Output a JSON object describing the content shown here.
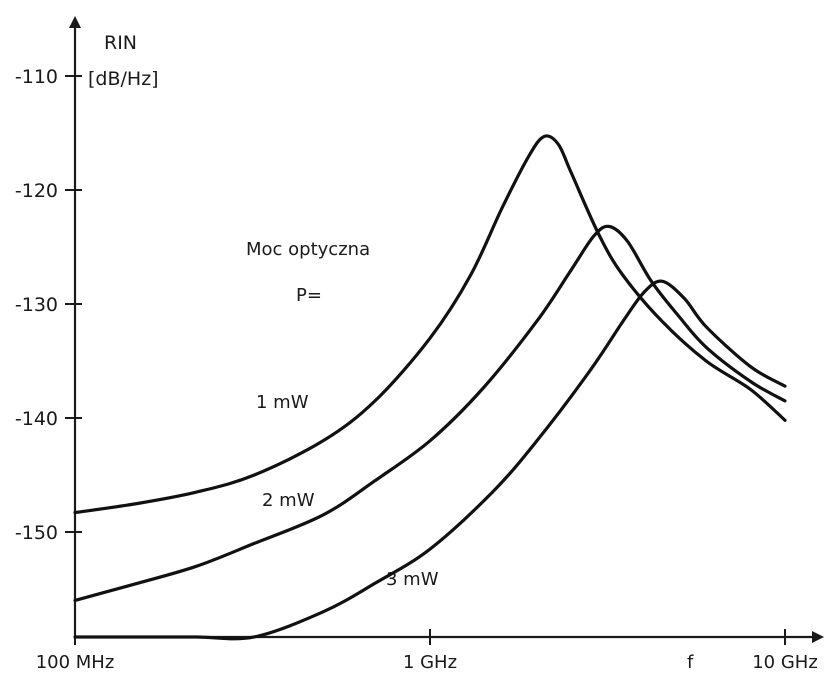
{
  "chart_data": {
    "type": "line",
    "title": "",
    "ylabel": "RIN",
    "yunit": "[dB/Hz]",
    "xlabel": "f",
    "x_scale": "log",
    "ylim": [
      -156,
      -106
    ],
    "xlim_hz": [
      100000000.0,
      10000000000.0
    ],
    "y_ticks": [
      -110,
      -120,
      -130,
      -140,
      -150
    ],
    "y_tick_labels": [
      "-110",
      "-120",
      "-130",
      "-140",
      "-150"
    ],
    "x_ticks_hz": [
      100000000.0,
      1000000000.0,
      10000000000.0
    ],
    "x_tick_labels": [
      "100 MHz",
      "1 GHz",
      "10 GHz"
    ],
    "legend_title": "Moc optyczna",
    "legend_prefix": "P=",
    "grid": false,
    "series": [
      {
        "name": "1 mW",
        "x_hz": [
          100000000.0,
          150000000.0,
          220000000.0,
          320000000.0,
          500000000.0,
          700000000.0,
          1000000000.0,
          1300000000.0,
          1600000000.0,
          1900000000.0,
          2100000000.0,
          2300000000.0,
          2500000000.0,
          3000000000.0,
          3500000000.0,
          4500000000.0,
          6000000000.0,
          8000000000.0,
          10000000000.0
        ],
        "y": [
          -148.3,
          -147.5,
          -146.5,
          -145,
          -142,
          -138.5,
          -133,
          -127.5,
          -121.5,
          -117,
          -115.3,
          -116,
          -118.5,
          -124,
          -127.5,
          -131.5,
          -135,
          -137.5,
          -140.2
        ]
      },
      {
        "name": "2 mW",
        "x_hz": [
          100000000.0,
          150000000.0,
          220000000.0,
          320000000.0,
          500000000.0,
          700000000.0,
          1000000000.0,
          1400000000.0,
          2000000000.0,
          2500000000.0,
          2900000000.0,
          3200000000.0,
          3600000000.0,
          4200000000.0,
          5000000000.0,
          6000000000.0,
          8000000000.0,
          10000000000.0
        ],
        "y": [
          -156,
          -154.5,
          -153,
          -151,
          -148.5,
          -145.5,
          -142,
          -137.5,
          -131.5,
          -127,
          -124,
          -123.2,
          -124.5,
          -128,
          -131,
          -133.8,
          -136.8,
          -138.5
        ]
      },
      {
        "name": "3 mW",
        "x_hz": [
          100000000.0,
          150000000.0,
          220000000.0,
          320000000.0,
          500000000.0,
          700000000.0,
          1000000000.0,
          1500000000.0,
          2000000000.0,
          2800000000.0,
          3500000000.0,
          4000000000.0,
          4500000000.0,
          5200000000.0,
          6000000000.0,
          8000000000.0,
          10000000000.0
        ],
        "y": [
          -161.5,
          -161,
          -160.3,
          -159.2,
          -157,
          -154.5,
          -151.5,
          -146.5,
          -142,
          -136,
          -131.5,
          -129,
          -128,
          -129.5,
          -132,
          -135.5,
          -137.2
        ]
      }
    ]
  }
}
